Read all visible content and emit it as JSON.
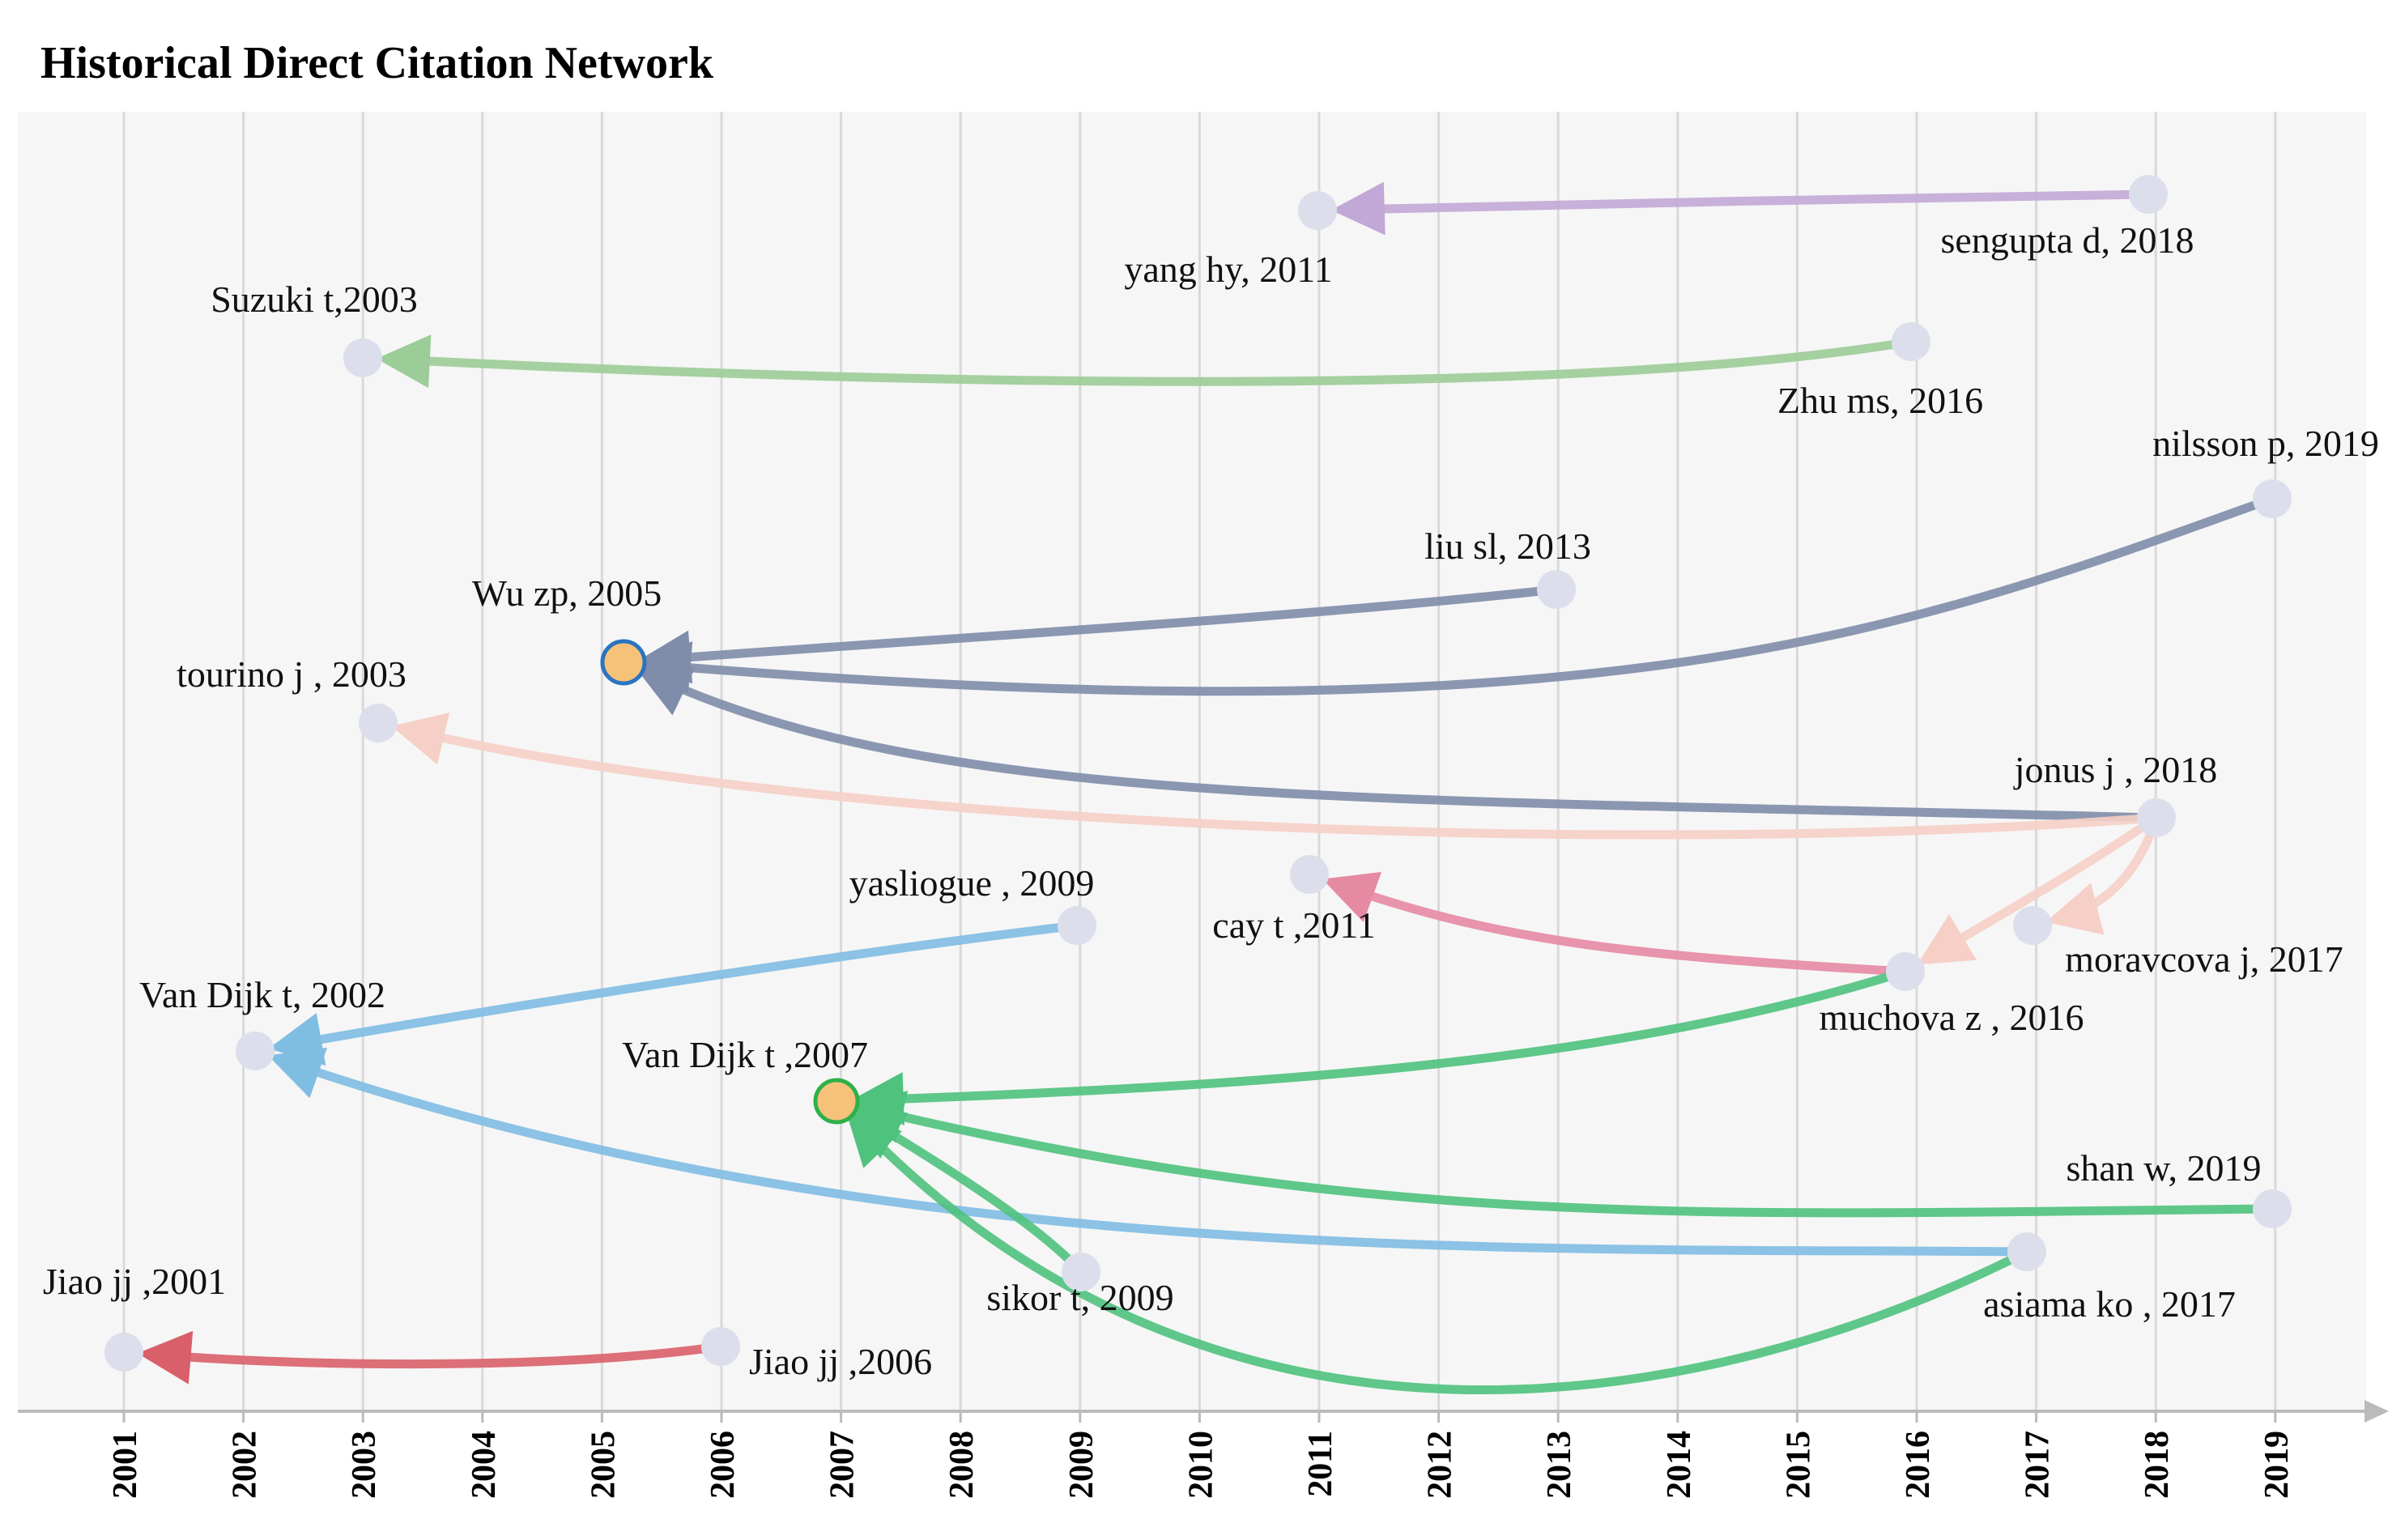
{
  "title": "Historical Direct Citation Network",
  "axis": {
    "years": [
      "2001",
      "2002",
      "2003",
      "2004",
      "2005",
      "2006",
      "2007",
      "2008",
      "2009",
      "2010",
      "2011",
      "2012",
      "2013",
      "2014",
      "2015",
      "2016",
      "2017",
      "2018",
      "2019"
    ]
  },
  "colors": {
    "plot_bg": "#f6f6f6",
    "grid": "#d9d9d9",
    "node": "#dcdfeb",
    "highlight_fill": "#f6c27a",
    "axis": "#bbbbbb"
  },
  "nodes": [
    {
      "id": "sengupta",
      "label": "sengupta d, 2018",
      "year": 2018
    },
    {
      "id": "yanghy",
      "label": "yang hy, 2011",
      "year": 2011
    },
    {
      "id": "suzuki",
      "label": "Suzuki t,2003",
      "year": 2003
    },
    {
      "id": "zhums",
      "label": "Zhu ms, 2016",
      "year": 2016
    },
    {
      "id": "nilsson",
      "label": "nilsson p, 2019",
      "year": 2019
    },
    {
      "id": "liusl",
      "label": "liu sl, 2013",
      "year": 2013
    },
    {
      "id": "wuzp",
      "label": "Wu zp, 2005",
      "year": 2005,
      "highlight": true,
      "ring": "#2a74c0"
    },
    {
      "id": "tourino",
      "label": "tourino j , 2003",
      "year": 2003
    },
    {
      "id": "jonus",
      "label": "jonus j , 2018",
      "year": 2018
    },
    {
      "id": "cay",
      "label": "cay t ,2011",
      "year": 2011
    },
    {
      "id": "moravcova",
      "label": "moravcova j, 2017",
      "year": 2017
    },
    {
      "id": "yasliogue",
      "label": "yasliogue , 2009",
      "year": 2009
    },
    {
      "id": "muchova",
      "label": "muchova z , 2016",
      "year": 2016
    },
    {
      "id": "vandijk2002",
      "label": "Van Dijk t, 2002",
      "year": 2002
    },
    {
      "id": "vandijk2007",
      "label": "Van Dijk t ,2007",
      "year": 2007,
      "highlight": true,
      "ring": "#2fb04a"
    },
    {
      "id": "shanw",
      "label": "shan w, 2019",
      "year": 2019
    },
    {
      "id": "sikor",
      "label": "sikor t, 2009",
      "year": 2009
    },
    {
      "id": "asiama",
      "label": "asiama ko , 2017",
      "year": 2017
    },
    {
      "id": "jiao2001",
      "label": "Jiao jj ,2001",
      "year": 2001
    },
    {
      "id": "jiao2006",
      "label": "Jiao jj ,2006",
      "year": 2006
    }
  ],
  "edges": [
    {
      "from": "sengupta",
      "to": "yanghy",
      "color": "#c2a8d6"
    },
    {
      "from": "zhums",
      "to": "suzuki",
      "color": "#9ccc97"
    },
    {
      "from": "liusl",
      "to": "wuzp",
      "color": "#7f8daa"
    },
    {
      "from": "nilsson",
      "to": "wuzp",
      "color": "#7f8daa"
    },
    {
      "from": "jonus",
      "to": "wuzp",
      "color": "#7f8daa"
    },
    {
      "from": "jonus",
      "to": "tourino",
      "color": "#f6cfc6"
    },
    {
      "from": "jonus",
      "to": "muchova",
      "color": "#f6cfc6"
    },
    {
      "from": "jonus",
      "to": "moravcova",
      "color": "#f6cfc6"
    },
    {
      "from": "muchova",
      "to": "cay",
      "color": "#e68aa4"
    },
    {
      "from": "yasliogue",
      "to": "vandijk2002",
      "color": "#80bde3"
    },
    {
      "from": "asiama",
      "to": "vandijk2002",
      "color": "#80bde3"
    },
    {
      "from": "muchova",
      "to": "vandijk2007",
      "color": "#4fc27d"
    },
    {
      "from": "shanw",
      "to": "vandijk2007",
      "color": "#4fc27d"
    },
    {
      "from": "sikor",
      "to": "vandijk2007",
      "color": "#4fc27d"
    },
    {
      "from": "asiama",
      "to": "vandijk2007",
      "color": "#4fc27d"
    },
    {
      "from": "jiao2006",
      "to": "jiao2001",
      "color": "#d9606a"
    }
  ]
}
